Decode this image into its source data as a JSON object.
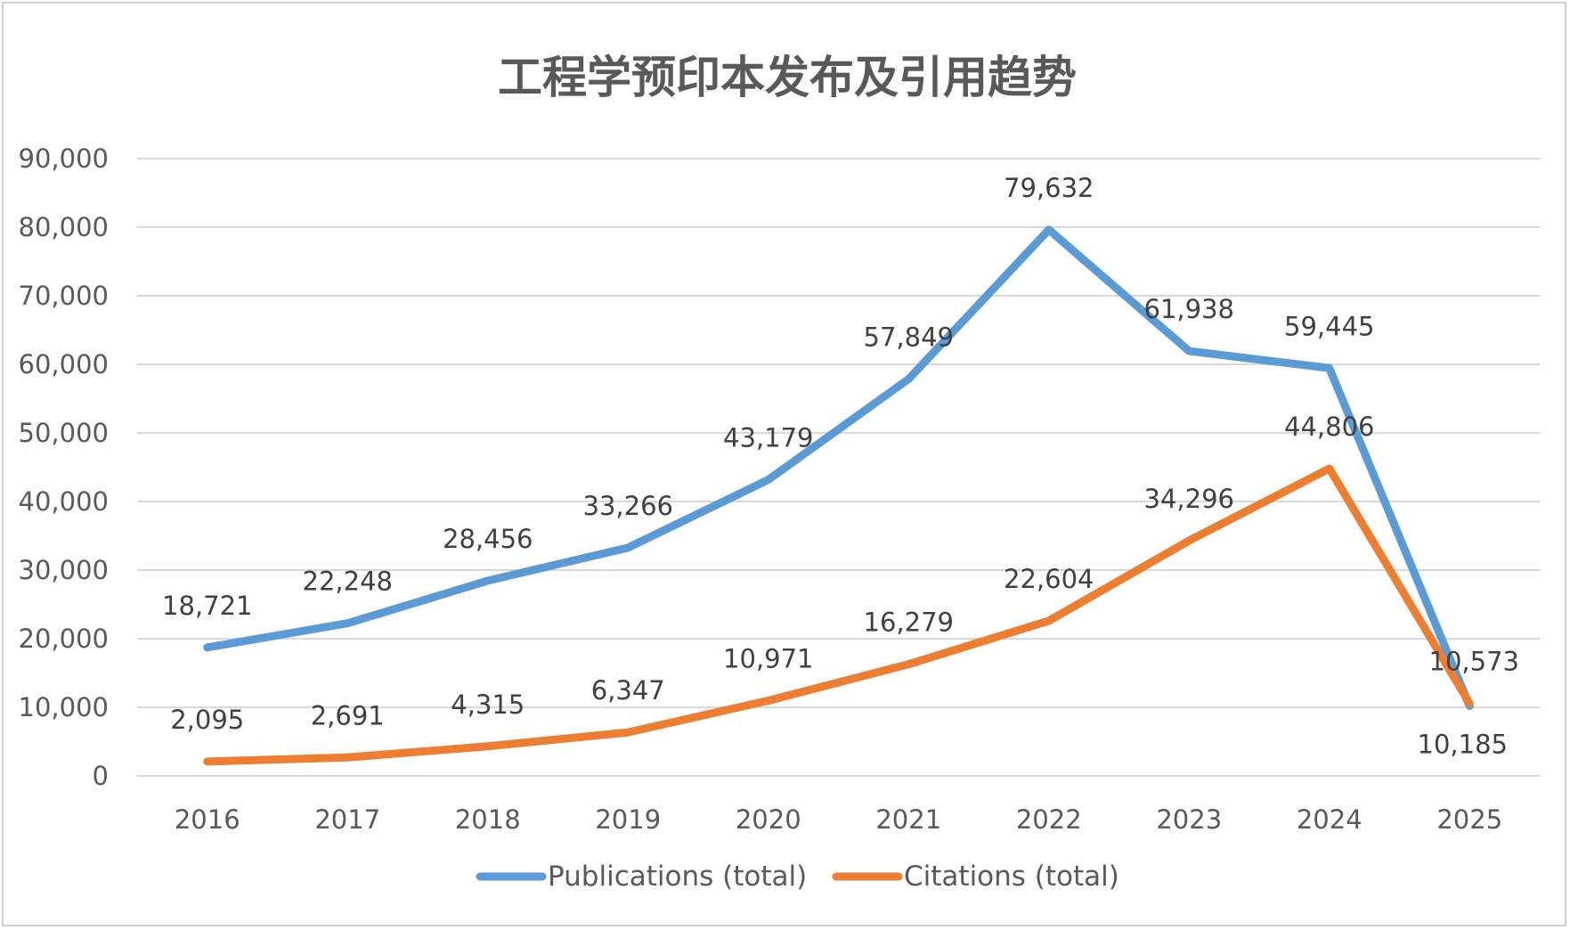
{
  "chart_data": {
    "type": "line",
    "title": "工程学预印本发布及引用趋势",
    "categories": [
      "2016",
      "2017",
      "2018",
      "2019",
      "2020",
      "2021",
      "2022",
      "2023",
      "2024",
      "2025"
    ],
    "series": [
      {
        "name": "Publications (total)",
        "color": "#5b9bd5",
        "values": [
          18721,
          22248,
          28456,
          33266,
          43179,
          57849,
          79632,
          61938,
          59445,
          10185
        ],
        "labels": [
          "18,721",
          "22,248",
          "28,456",
          "33,266",
          "43,179",
          "57,849",
          "79,632",
          "61,938",
          "59,445",
          "10,185"
        ]
      },
      {
        "name": "Citations (total)",
        "color": "#ed7d31",
        "values": [
          2095,
          2691,
          4315,
          6347,
          10971,
          16279,
          22604,
          34296,
          44806,
          10573
        ],
        "labels": [
          "2,095",
          "2,691",
          "4,315",
          "6,347",
          "10,971",
          "16,279",
          "22,604",
          "34,296",
          "44,806",
          "10,573"
        ]
      }
    ],
    "yticks": [
      0,
      10000,
      20000,
      30000,
      40000,
      50000,
      60000,
      70000,
      80000,
      90000
    ],
    "ytick_labels": [
      "0",
      "10,000",
      "20,000",
      "30,000",
      "40,000",
      "50,000",
      "60,000",
      "70,000",
      "80,000",
      "90,000"
    ],
    "ylim": [
      0,
      90000
    ],
    "xlabel": "",
    "ylabel": "",
    "grid": true,
    "legend_position": "bottom"
  }
}
